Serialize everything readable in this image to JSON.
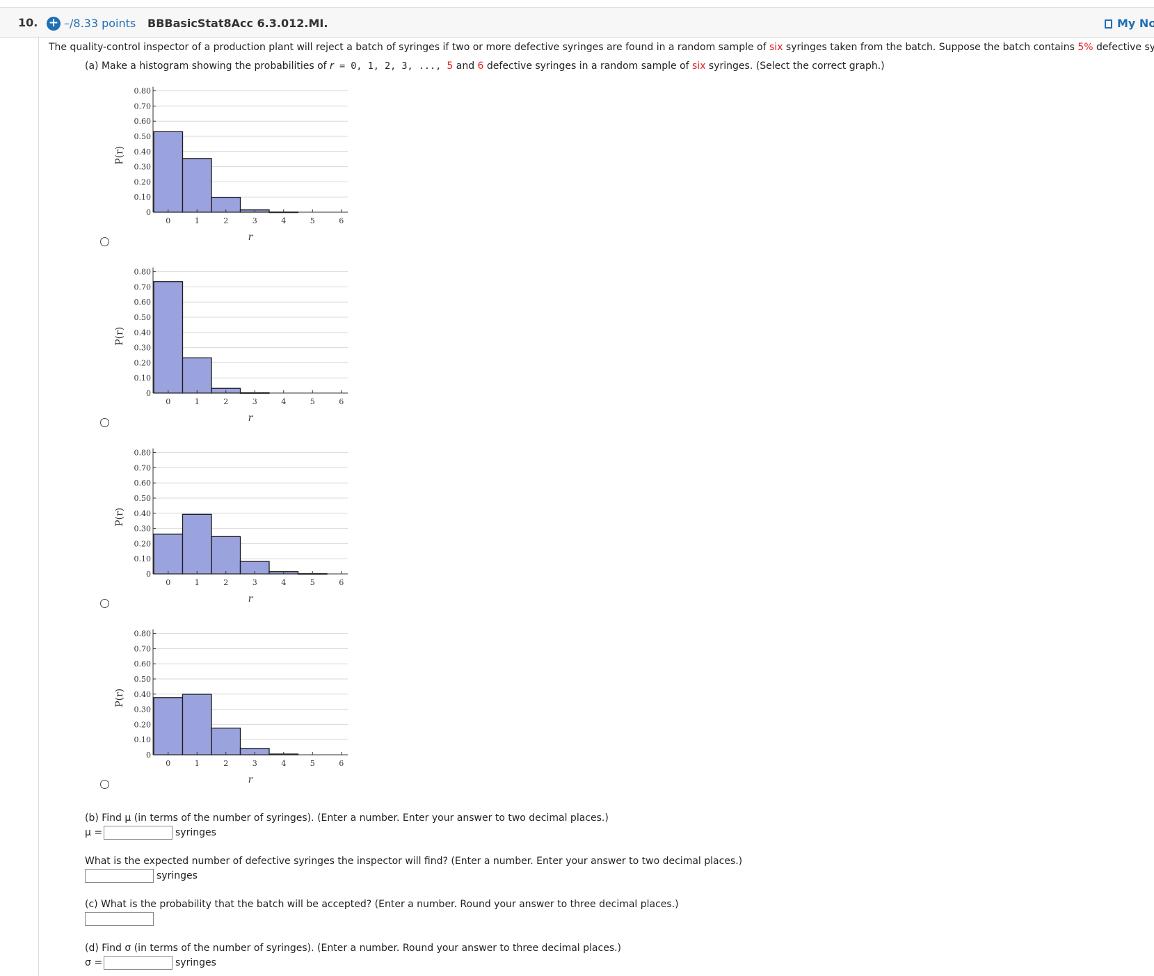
{
  "header": {
    "number": "10.",
    "points": "–/8.33 points",
    "question_id": "BBBasicStat8Acc 6.3.012.MI.",
    "notes_label": "My Notes"
  },
  "statement": {
    "p1": "The quality-control inspector of a production plant will reject a batch of syringes if two or more defective syringes are found in a random sample of ",
    "six": "six",
    "p2": " syringes taken from the batch. Suppose the batch contains ",
    "pct": "5%",
    "p3": " defective syringes."
  },
  "part_a": {
    "p1": "(a) Make a histogram showing the probabilities of ",
    "r": "r",
    "p2": " = 0, 1, 2, 3, ..., ",
    "five": "5",
    "p3": " and ",
    "six_num": "6",
    "p4": " defective syringes in a random sample of ",
    "six": "six",
    "p5": " syringes. (Select the correct graph.)"
  },
  "chart_data": [
    {
      "type": "bar",
      "title": "",
      "xlabel": "r",
      "ylabel": "P(r)",
      "categories": [
        "0",
        "1",
        "2",
        "3",
        "4",
        "5",
        "6"
      ],
      "values": [
        0.531,
        0.354,
        0.098,
        0.015,
        0.001,
        0.0,
        0.0
      ],
      "ylim": [
        0,
        0.8
      ],
      "yticks": [
        "0",
        "0.10",
        "0.20",
        "0.30",
        "0.40",
        "0.50",
        "0.60",
        "0.70",
        "0.80"
      ],
      "grid": true
    },
    {
      "type": "bar",
      "title": "",
      "xlabel": "r",
      "ylabel": "P(r)",
      "categories": [
        "0",
        "1",
        "2",
        "3",
        "4",
        "5",
        "6"
      ],
      "values": [
        0.735,
        0.232,
        0.031,
        0.002,
        0.0,
        0.0,
        0.0
      ],
      "ylim": [
        0,
        0.8
      ],
      "yticks": [
        "0",
        "0.10",
        "0.20",
        "0.30",
        "0.40",
        "0.50",
        "0.60",
        "0.70",
        "0.80"
      ],
      "grid": true
    },
    {
      "type": "bar",
      "title": "",
      "xlabel": "r",
      "ylabel": "P(r)",
      "categories": [
        "0",
        "1",
        "2",
        "3",
        "4",
        "5",
        "6"
      ],
      "values": [
        0.262,
        0.393,
        0.246,
        0.082,
        0.015,
        0.002,
        0.0
      ],
      "ylim": [
        0,
        0.8
      ],
      "yticks": [
        "0",
        "0.10",
        "0.20",
        "0.30",
        "0.40",
        "0.50",
        "0.60",
        "0.70",
        "0.80"
      ],
      "grid": true
    },
    {
      "type": "bar",
      "title": "",
      "xlabel": "r",
      "ylabel": "P(r)",
      "categories": [
        "0",
        "1",
        "2",
        "3",
        "4",
        "5",
        "6"
      ],
      "values": [
        0.377,
        0.399,
        0.176,
        0.042,
        0.005,
        0.0,
        0.0
      ],
      "ylim": [
        0,
        0.8
      ],
      "yticks": [
        "0",
        "0.10",
        "0.20",
        "0.30",
        "0.40",
        "0.50",
        "0.60",
        "0.70",
        "0.80"
      ],
      "grid": true
    }
  ],
  "colors": {
    "bar_fill": "#9aa3dd",
    "bar_stroke": "#1a1a1a",
    "grid": "#d8d8d8",
    "link": "#1f6fb5",
    "red": "#e41e1e"
  },
  "part_b": {
    "question": "(b) Find μ (in terms of the number of syringes). (Enter a number. Enter your answer to two decimal places.)",
    "label": "μ =",
    "value": "",
    "unit": "syringes"
  },
  "expected": {
    "question": "What is the expected number of defective syringes the inspector will find? (Enter a number. Enter your answer to two decimal places.)",
    "value": "",
    "unit": "syringes"
  },
  "part_c": {
    "question": "(c) What is the probability that the batch will be accepted? (Enter a number. Round your answer to three decimal places.)",
    "value": ""
  },
  "part_d": {
    "question": "(d) Find σ (in terms of the number of syringes). (Enter a number. Round your answer to three decimal places.)",
    "label": "σ =",
    "value": "",
    "unit": "syringes"
  }
}
